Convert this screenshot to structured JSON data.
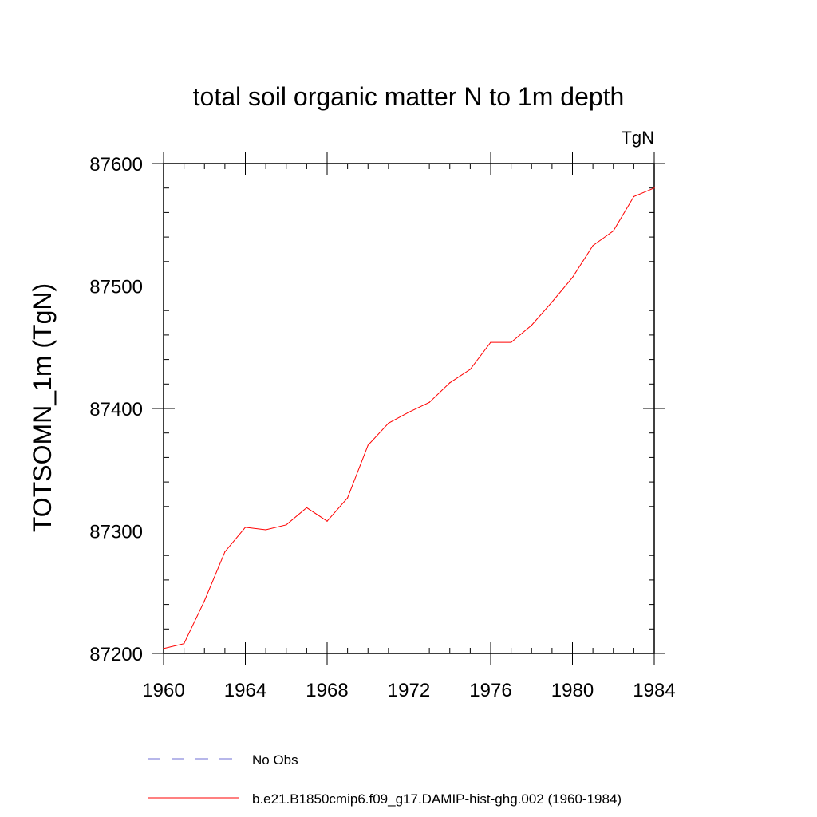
{
  "chart_data": {
    "type": "line",
    "title": "total soil organic matter N to 1m depth",
    "units": "TgN",
    "xlabel": "",
    "ylabel": "TOTSOMN_1m  (TgN)",
    "xlim": [
      1960,
      1984
    ],
    "ylim": [
      87200,
      87600
    ],
    "x_ticks": [
      1960,
      1964,
      1968,
      1972,
      1976,
      1980,
      1984
    ],
    "x_minor_step": 1,
    "y_ticks": [
      87200,
      87300,
      87400,
      87500,
      87600
    ],
    "y_minor_step": 20,
    "grid": false,
    "legend_position": "bottom",
    "series": [
      {
        "name": "No Obs",
        "color": "#6f6fd6",
        "dash": "dashed",
        "x": [],
        "y": []
      },
      {
        "name": "b.e21.B1850cmip6.f09_g17.DAMIP-hist-ghg.002 (1960-1984)",
        "color": "#ff0000",
        "dash": "solid",
        "x": [
          1960,
          1961,
          1962,
          1963,
          1964,
          1965,
          1966,
          1967,
          1968,
          1969,
          1970,
          1971,
          1972,
          1973,
          1974,
          1975,
          1976,
          1977,
          1978,
          1979,
          1980,
          1981,
          1982,
          1983,
          1984
        ],
        "y": [
          87204,
          87208,
          87243,
          87283,
          87303,
          87301,
          87305,
          87319,
          87308,
          87327,
          87370,
          87388,
          87397,
          87405,
          87421,
          87432,
          87454,
          87454,
          87468,
          87487,
          87507,
          87533,
          87545,
          87573,
          87580
        ]
      }
    ]
  }
}
